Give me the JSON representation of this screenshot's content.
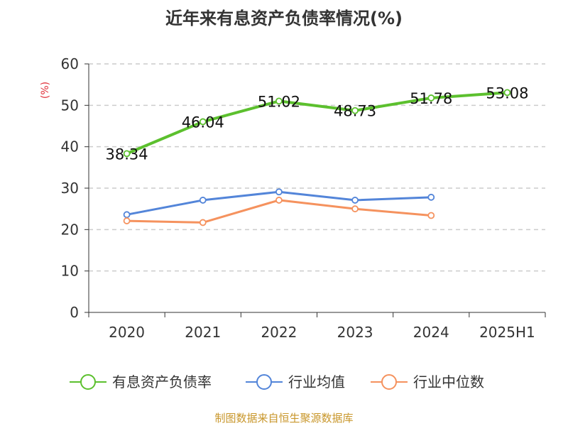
{
  "chart_data": {
    "type": "line",
    "title": "近年来有息资产负债率情况(%)",
    "ylabel": "(%)",
    "categories": [
      "2020",
      "2021",
      "2022",
      "2023",
      "2024",
      "2025H1"
    ],
    "ylim": [
      0,
      60
    ],
    "yticks": [
      0,
      10,
      20,
      30,
      40,
      50,
      60
    ],
    "grid": true,
    "legend_position": "bottom",
    "series": [
      {
        "name": "有息资产负债率",
        "color": "#5cc02e",
        "values": [
          38.34,
          46.04,
          51.02,
          48.73,
          51.78,
          53.08
        ],
        "labels": [
          "38.34",
          "46.04",
          "51.02",
          "48.73",
          "51.78",
          "53.08"
        ]
      },
      {
        "name": "行业均值",
        "color": "#5385d9",
        "values": [
          23.6,
          27.1,
          29.1,
          27.1,
          27.8,
          null
        ]
      },
      {
        "name": "行业中位数",
        "color": "#f5925e",
        "values": [
          22.1,
          21.7,
          27.1,
          25.0,
          23.4,
          null
        ]
      }
    ]
  },
  "source": "制图数据来自恒生聚源数据库"
}
